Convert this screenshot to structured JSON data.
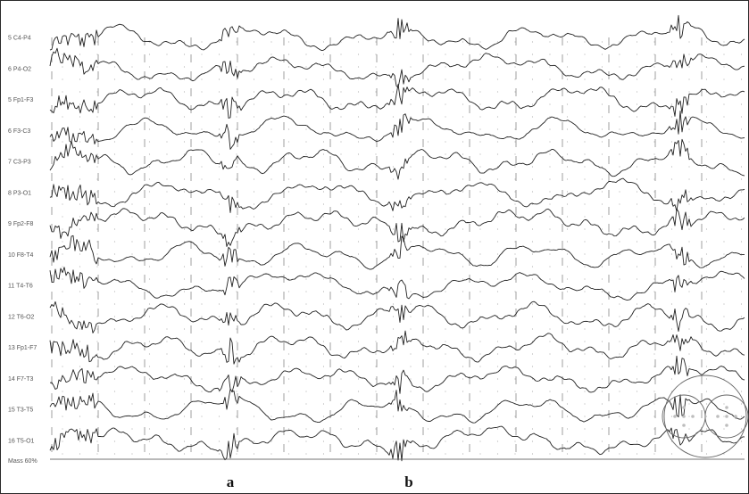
{
  "chart_data": {
    "type": "line",
    "title": "",
    "channels": [
      {
        "index": "5",
        "name": "C4-P4"
      },
      {
        "index": "6",
        "name": "P4-O2"
      },
      {
        "index": "5",
        "name": "Fp1-F3"
      },
      {
        "index": "6",
        "name": "F3-C3"
      },
      {
        "index": "7",
        "name": "C3-P3"
      },
      {
        "index": "8",
        "name": "P3-O1"
      },
      {
        "index": "9",
        "name": "Fp2-F8"
      },
      {
        "index": "10",
        "name": "F8-T4"
      },
      {
        "index": "11",
        "name": "T4-T6"
      },
      {
        "index": "12",
        "name": "T6-O2"
      },
      {
        "index": "13",
        "name": "Fp1-F7"
      },
      {
        "index": "14",
        "name": "F7-T3"
      },
      {
        "index": "15",
        "name": "T3-T5"
      },
      {
        "index": "16",
        "name": "T5-O1"
      }
    ],
    "bottom_label": "Mass 60%",
    "markers": [
      {
        "label": "a"
      },
      {
        "label": "b"
      }
    ],
    "grid": "dotted",
    "colors": {
      "trace": "#222222",
      "background": "#ffffff"
    }
  }
}
